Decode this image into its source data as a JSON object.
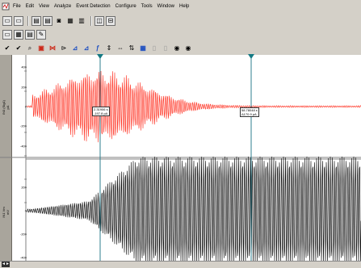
{
  "menubar": {
    "items": [
      "File",
      "Edit",
      "View",
      "Analyze",
      "Event Detection",
      "Configure",
      "Tools",
      "Window",
      "Help"
    ]
  },
  "toolbar1": {
    "icons": [
      "open-data-icon",
      "save-data-icon",
      "open-protocol-icon",
      "save-protocol-icon",
      "record-icon",
      "print-icon",
      "copy-icon",
      "window-layout-icon",
      "tile-icon"
    ]
  },
  "toolbar2": {
    "icons": [
      "graph-window-icon",
      "results-icon",
      "layout-icon",
      "lab-book-icon"
    ]
  },
  "toolbar3": {
    "icons": [
      "check-icon",
      "check-all-icon",
      "zoom-icon",
      "auto-scale-icon",
      "cursor-pair-icon",
      "pan-icon",
      "fit-icon",
      "decimate-icon",
      "function-icon",
      "arrange-icon",
      "scale-icon",
      "marker-icon",
      "overlay-icon",
      "grid-icon",
      "stats-icon",
      "stop-icon",
      "record-stop-icon"
    ]
  },
  "channels": [
    {
      "label": "IN0 (Sig1)\npA",
      "ticks": [
        "400",
        "200",
        "0",
        "-200",
        "-400"
      ],
      "tick_values": [
        400,
        200,
        0,
        -200,
        -400
      ],
      "color": "#ff2a1a"
    },
    {
      "label": "IN1 Vm\nmV",
      "ticks": [
        "200",
        "0",
        "-200",
        "-400"
      ],
      "tick_values": [
        200,
        0,
        -200,
        -400
      ],
      "color": "#000000"
    }
  ],
  "cursors": [
    {
      "label_line1": "2.31906 s",
      "label_line2": "-197.8 pA"
    },
    {
      "label_line1": "58.78048 s",
      "label_line2": "Δ170.9 pA"
    }
  ],
  "xaxis": {
    "tick_labels": [
      "",
      "",
      "",
      "",
      "",
      ""
    ]
  },
  "scroll": {
    "label": "◄►"
  },
  "colors": {
    "cursor": "#2f7f8f",
    "marker": "#147a84"
  }
}
